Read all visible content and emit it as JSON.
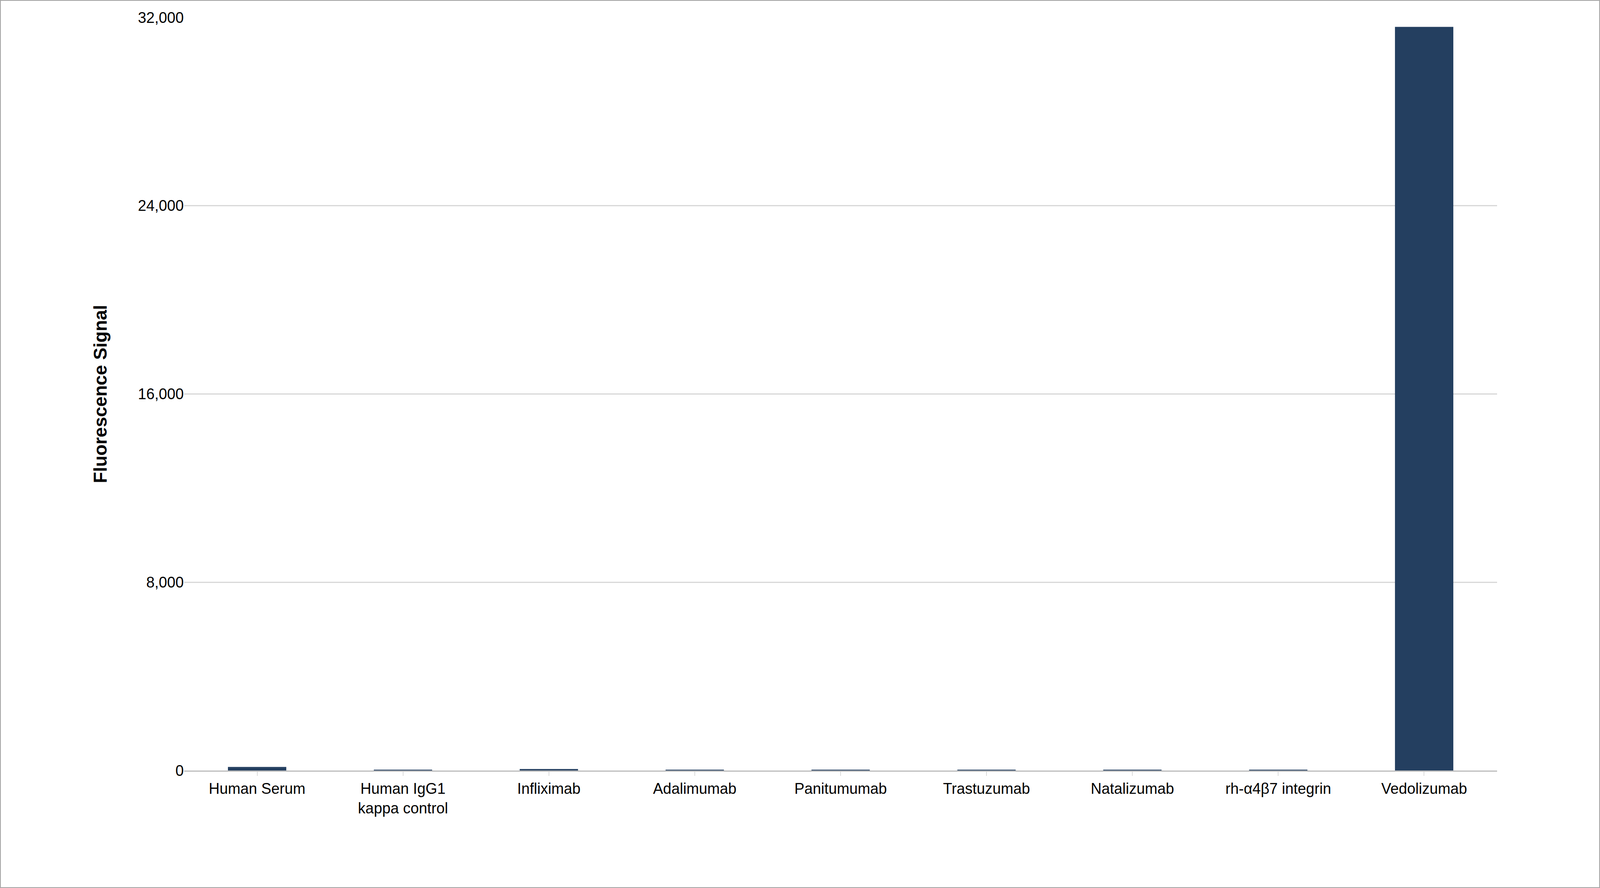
{
  "chart_data": {
    "type": "bar",
    "y_label": "Fluorescence Signal",
    "categories": [
      "Human Serum",
      "Human IgG1 kappa control",
      "Infliximab",
      "Adalimumab",
      "Panitumumab",
      "Trastuzumab",
      "Natalizumab",
      "rh-α4β7 integrin",
      "Vedolizumab"
    ],
    "values": [
      150,
      30,
      60,
      30,
      30,
      30,
      30,
      30,
      31600
    ],
    "color": "#243f60",
    "ylim": [
      0,
      32000
    ],
    "yticks": [
      0,
      {
        "value": 8000,
        "label": "8,000"
      },
      {
        "value": 16000,
        "label": "16,000"
      },
      {
        "value": 24000,
        "label": "24,000"
      },
      {
        "value": 32000,
        "label": "32,000"
      }
    ],
    "grid": true
  }
}
